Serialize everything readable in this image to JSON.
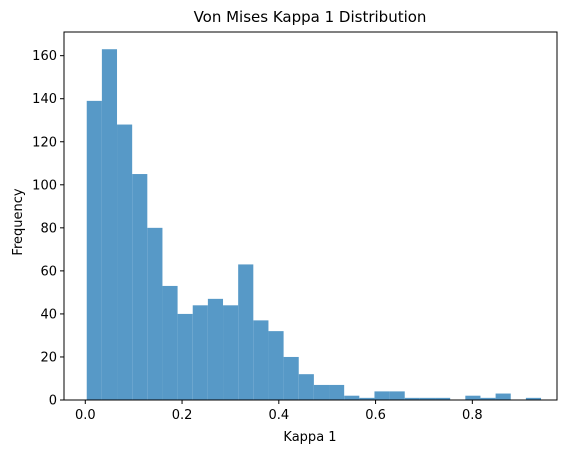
{
  "chart_data": {
    "type": "bar",
    "title": "Von Mises Kappa 1 Distribution",
    "xlabel": "Kappa 1",
    "ylabel": "Frequency",
    "xlim": [
      -0.044,
      0.975
    ],
    "ylim": [
      0,
      171
    ],
    "xticks": [
      0.0,
      0.2,
      0.4,
      0.6,
      0.8
    ],
    "xtick_labels": [
      "0.0",
      "0.2",
      "0.4",
      "0.6",
      "0.8"
    ],
    "yticks": [
      0,
      20,
      40,
      60,
      80,
      100,
      120,
      140,
      160
    ],
    "ytick_labels": [
      "0",
      "20",
      "40",
      "60",
      "80",
      "100",
      "120",
      "140",
      "160"
    ],
    "bin_edges": [
      0.003,
      0.0343,
      0.0656,
      0.0969,
      0.1282,
      0.1595,
      0.1908,
      0.2221,
      0.2534,
      0.2847,
      0.316,
      0.3473,
      0.3786,
      0.4099,
      0.4412,
      0.4725,
      0.5038,
      0.5351,
      0.5664,
      0.5977,
      0.629,
      0.6603,
      0.6916,
      0.7229,
      0.7542,
      0.7855,
      0.8168,
      0.8481,
      0.8794,
      0.9107,
      0.942
    ],
    "values": [
      139,
      163,
      128,
      105,
      80,
      53,
      40,
      44,
      47,
      44,
      63,
      37,
      32,
      20,
      12,
      7,
      7,
      2,
      1,
      4,
      4,
      1,
      1,
      1,
      0,
      2,
      1,
      3,
      0,
      1
    ],
    "grid": false,
    "colors": {
      "bar": "#5799c7",
      "axis": "#000000",
      "background": "#ffffff"
    }
  }
}
